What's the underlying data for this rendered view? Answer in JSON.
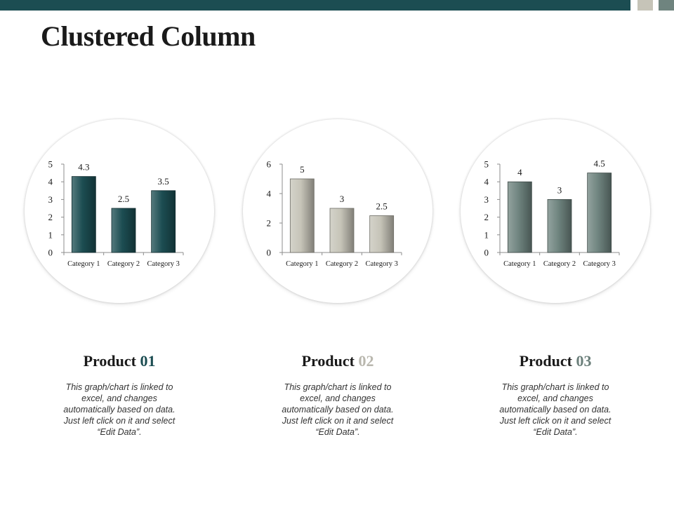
{
  "title": "Clustered Column",
  "colors": {
    "top_bar": "#1c4d52",
    "square_1": "#c6c4b8",
    "square_2": "#6f847f"
  },
  "products": [
    {
      "name": "Product",
      "number": "01",
      "number_color": "#1c4d52",
      "description": "This graph/chart is linked to excel, and changes automatically based on data. Just left click on it and select “Edit Data”."
    },
    {
      "name": "Product",
      "number": "02",
      "number_color": "#b9b7ae",
      "description": "This graph/chart is linked to excel, and changes automatically based on data. Just left click on it and select “Edit Data”."
    },
    {
      "name": "Product",
      "number": "03",
      "number_color": "#6b7f7a",
      "description": "This graph/chart is linked to excel, and changes automatically based on data. Just left click on it and select “Edit Data”."
    }
  ],
  "chart_data": [
    {
      "type": "bar",
      "categories": [
        "Category 1",
        "Category 2",
        "Category 3"
      ],
      "values": [
        4.3,
        2.5,
        3.5
      ],
      "ylim": [
        0,
        5
      ],
      "yticks": [
        0,
        1,
        2,
        3,
        4,
        5
      ],
      "data_labels": [
        "4.3",
        "2.5",
        "3.5"
      ],
      "color": "#1c4d52"
    },
    {
      "type": "bar",
      "categories": [
        "Category 1",
        "Category 2",
        "Category 3"
      ],
      "values": [
        5,
        3,
        2.5
      ],
      "ylim": [
        0,
        6
      ],
      "yticks": [
        0,
        2,
        4,
        6
      ],
      "data_labels": [
        "5",
        "3",
        "2.5"
      ],
      "color": "#c6c4b8"
    },
    {
      "type": "bar",
      "categories": [
        "Category 1",
        "Category 2",
        "Category 3"
      ],
      "values": [
        4,
        3,
        4.5
      ],
      "ylim": [
        0,
        5
      ],
      "yticks": [
        0,
        1,
        2,
        3,
        4,
        5
      ],
      "data_labels": [
        "4",
        "3",
        "4.5"
      ],
      "color": "#6f847f"
    }
  ]
}
